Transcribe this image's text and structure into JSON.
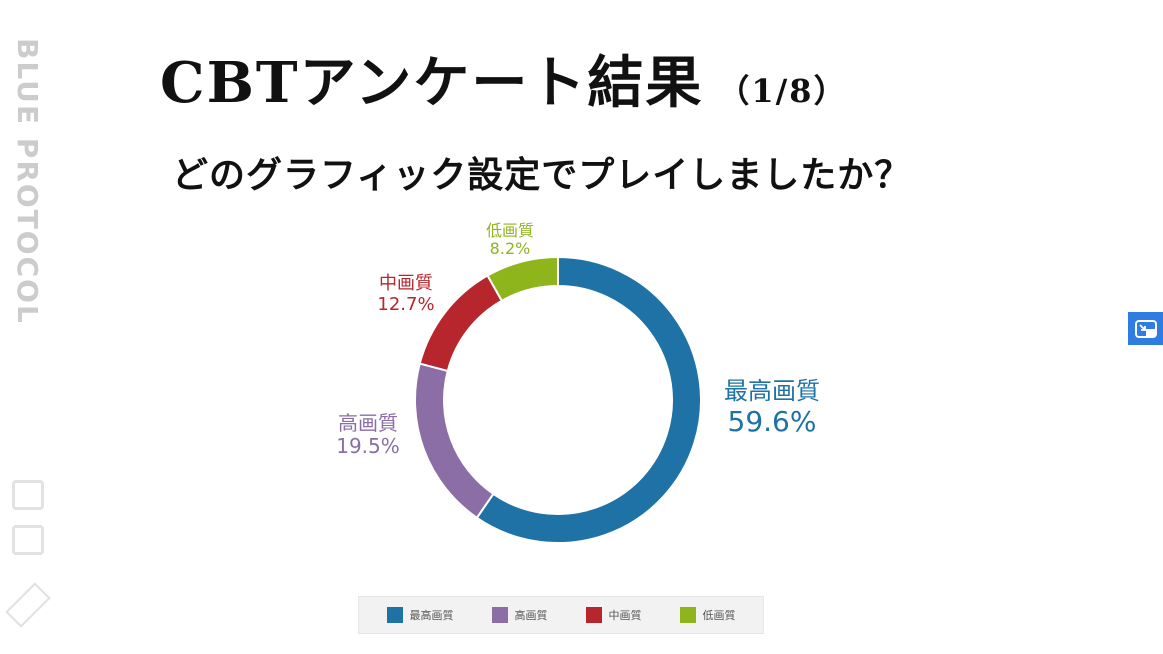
{
  "logo": {
    "text": "BLUE PROTOCOL"
  },
  "header": {
    "title": "CBTアンケート結果",
    "page": "（1/8）",
    "question": "どのグラフィック設定でプレイしましたか？"
  },
  "chart_data": {
    "type": "pie",
    "variant": "donut",
    "title": "どのグラフィック設定でプレイしましたか？",
    "categories": [
      "最高画質",
      "高画質",
      "中画質",
      "低画質"
    ],
    "values": [
      59.6,
      19.5,
      12.7,
      8.2
    ],
    "value_labels": [
      "59.6%",
      "19.5%",
      "12.7%",
      "8.2%"
    ],
    "colors": [
      "#1f72a6",
      "#8a6ea5",
      "#b7262c",
      "#8fb51d"
    ],
    "legend_position": "bottom"
  },
  "pip_button": {
    "icon": "picture-in-picture-icon"
  }
}
